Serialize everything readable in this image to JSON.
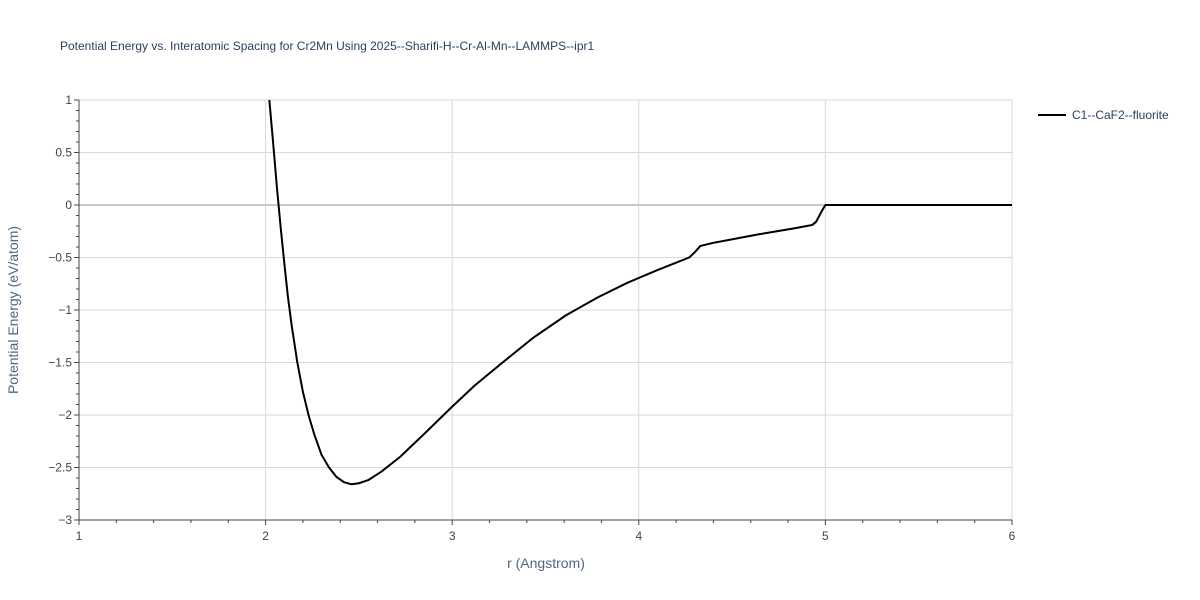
{
  "chart_data": {
    "type": "line",
    "title": "Potential Energy vs. Interatomic Spacing for Cr2Mn Using 2025--Sharifi-H--Cr-Al-Mn--LAMMPS--ipr1",
    "xlabel": "r (Angstrom)",
    "ylabel": "Potential Energy (eV/atom)",
    "xlim": [
      1,
      6
    ],
    "ylim": [
      -3,
      1
    ],
    "x_ticks": [
      "1",
      "2",
      "3",
      "4",
      "5",
      "6"
    ],
    "y_ticks": [
      "1",
      "0.5",
      "0",
      "−0.5",
      "−1",
      "−1.5",
      "−2",
      "−2.5",
      "−3"
    ],
    "grid": true,
    "legend_position": "top-right outside plot",
    "series": [
      {
        "name": "C1--CaF2--fluorite",
        "color": "#000000",
        "x": [
          2.02,
          2.04,
          2.06,
          2.08,
          2.1,
          2.12,
          2.14,
          2.17,
          2.2,
          2.23,
          2.26,
          2.3,
          2.34,
          2.38,
          2.42,
          2.46,
          2.5,
          2.55,
          2.62,
          2.72,
          2.85,
          3.0,
          3.12,
          3.27,
          3.43,
          3.61,
          3.78,
          3.94,
          4.1,
          4.27,
          4.3,
          4.33,
          4.4,
          4.52,
          4.64,
          4.74,
          4.84,
          4.9,
          4.93,
          4.95,
          4.98,
          5.0,
          5.2,
          5.5,
          6.0
        ],
        "y": [
          1.0,
          0.6,
          0.18,
          -0.2,
          -0.55,
          -0.88,
          -1.15,
          -1.5,
          -1.78,
          -2.0,
          -2.18,
          -2.38,
          -2.5,
          -2.59,
          -2.64,
          -2.66,
          -2.65,
          -2.62,
          -2.54,
          -2.4,
          -2.18,
          -1.92,
          -1.72,
          -1.5,
          -1.27,
          -1.05,
          -0.88,
          -0.74,
          -0.62,
          -0.5,
          -0.45,
          -0.39,
          -0.36,
          -0.32,
          -0.28,
          -0.25,
          -0.22,
          -0.2,
          -0.19,
          -0.16,
          -0.06,
          0.0,
          0.0,
          0.0,
          0.0
        ]
      }
    ]
  }
}
